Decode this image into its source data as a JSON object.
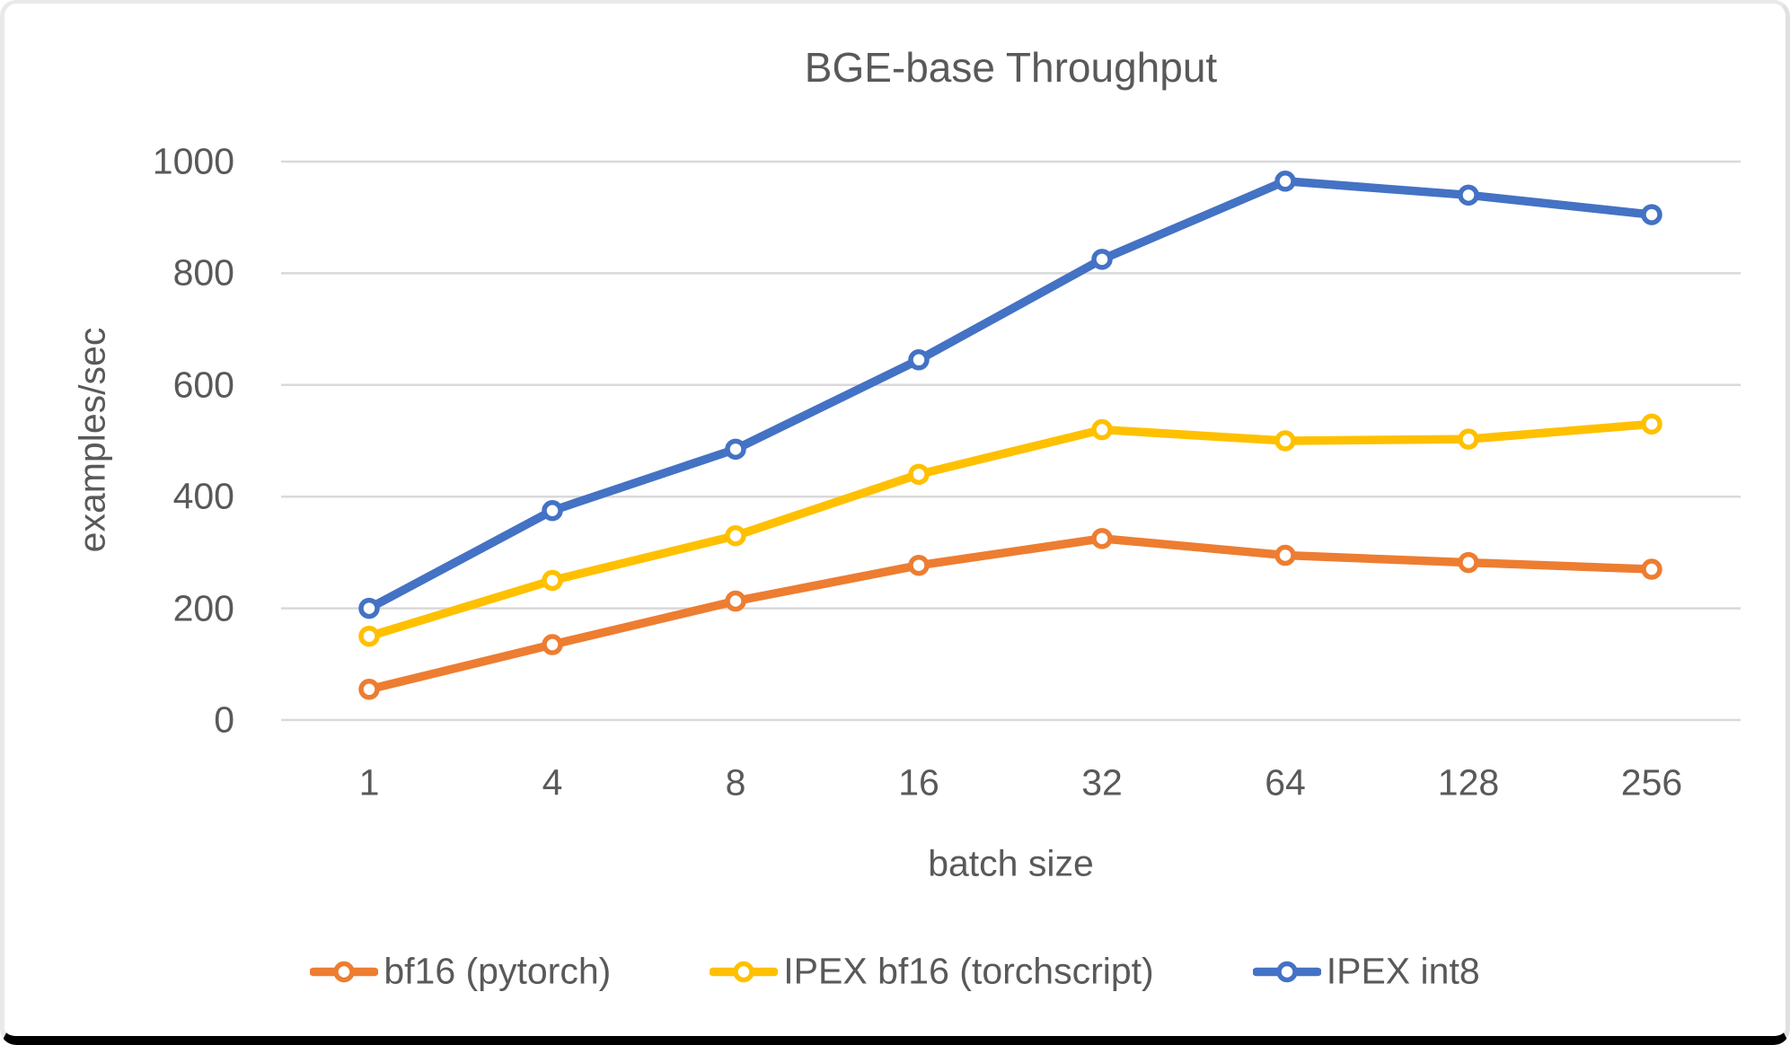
{
  "chart_data": {
    "type": "line",
    "title": "BGE-base Throughput",
    "xlabel": "batch size",
    "ylabel": "examples/sec",
    "categories": [
      "1",
      "4",
      "8",
      "16",
      "32",
      "64",
      "128",
      "256"
    ],
    "series": [
      {
        "name": "bf16 (pytorch)",
        "color": "#ED7D31",
        "values": [
          55,
          135,
          213,
          277,
          325,
          295,
          282,
          270
        ]
      },
      {
        "name": "IPEX bf16 (torchscript)",
        "color": "#FFC000",
        "values": [
          150,
          250,
          330,
          440,
          520,
          500,
          503,
          530
        ]
      },
      {
        "name": "IPEX int8",
        "color": "#4472C4",
        "values": [
          200,
          375,
          485,
          645,
          825,
          965,
          940,
          905
        ]
      }
    ],
    "ylim": [
      0,
      1000
    ],
    "yticks": [
      0,
      200,
      400,
      600,
      800,
      1000
    ],
    "grid": true,
    "legend_position": "bottom"
  },
  "styles": {
    "text_color": "#595959",
    "gridline_color": "#D9D9D9",
    "background": "#FFFFFF"
  }
}
